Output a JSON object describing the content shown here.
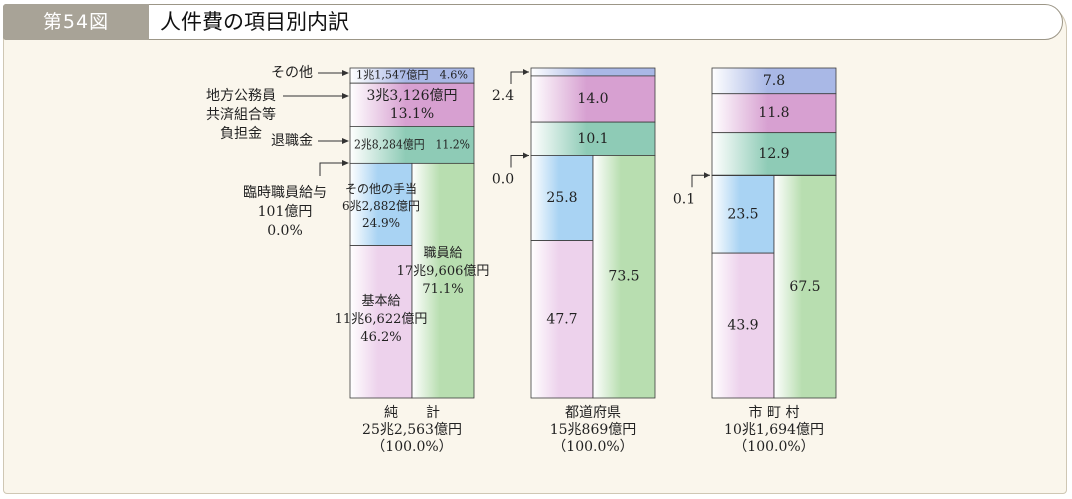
{
  "header": {
    "figure_number": "第54図",
    "title": "人件費の項目別内訳"
  },
  "colors": {
    "other": "#a9b8e6",
    "pension": "#d7a0d1",
    "retirement": "#8ecbb6",
    "other_allowance": "#a9d3f3",
    "base_salary": "#edd2ec",
    "staff_salary": "#b8deb0",
    "temp": "#ffffff"
  },
  "left_labels": {
    "other": "その他",
    "pension": [
      "地方公務員",
      "共済組合等",
      "負担金"
    ],
    "retirement": "退職金",
    "temp": [
      "臨時職員給与",
      "101億円",
      "0.0%"
    ]
  },
  "chart_data": {
    "type": "bar",
    "stacked": true,
    "unit": "%",
    "categories": [
      "純計",
      "都道府県",
      "市町村"
    ],
    "category_labels": [
      [
        "純　　計",
        "25兆2,563億円",
        "（100.0%）"
      ],
      [
        "都道府県",
        "15兆869億円",
        "（100.0%）"
      ],
      [
        "市 町 村",
        "10兆1,694億円",
        "（100.0%）"
      ]
    ],
    "series": [
      {
        "key": "other",
        "values": [
          4.6,
          2.4,
          7.8
        ]
      },
      {
        "key": "pension",
        "values": [
          13.1,
          14.0,
          11.8
        ]
      },
      {
        "key": "retirement",
        "values": [
          11.2,
          10.1,
          12.9
        ]
      },
      {
        "key": "temp",
        "values": [
          0.0,
          0.0,
          0.1
        ]
      },
      {
        "key": "other_allowance",
        "values": [
          24.9,
          25.8,
          23.5
        ]
      },
      {
        "key": "base_salary",
        "values": [
          46.2,
          47.7,
          43.9
        ]
      }
    ],
    "staff_salary_totals": [
      71.1,
      73.5,
      67.5
    ],
    "segment_labels": {
      "net": {
        "other": "1兆1,547億円　4.6%",
        "pension": [
          "3兆3,126億円",
          "13.1%"
        ],
        "retirement": "2兆8,284億円　11.2%",
        "other_allowance": [
          "その他の手当",
          "6兆2,882億円",
          "24.9%"
        ],
        "staff_salary": [
          "職員給",
          "17兆9,606億円",
          "71.1%"
        ],
        "base_salary": [
          "基本給",
          "11兆6,622億円",
          "46.2%"
        ]
      },
      "prefecture": {
        "pension": "14.0",
        "retirement": "10.1",
        "other_allowance": "25.8",
        "base_salary": "47.7",
        "staff_salary": "73.5",
        "other_callout": "2.4",
        "temp_callout": "0.0"
      },
      "municipality": {
        "other": "7.8",
        "pension": "11.8",
        "retirement": "12.9",
        "other_allowance": "23.5",
        "base_salary": "43.9",
        "staff_salary": "67.5",
        "temp_callout": "0.1"
      }
    }
  }
}
